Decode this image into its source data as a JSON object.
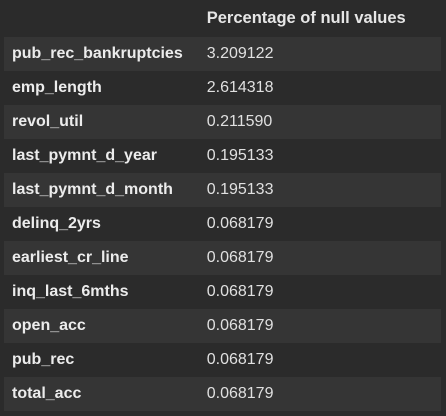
{
  "table": {
    "column_header": "Percentage of null values",
    "rows": [
      {
        "label": "pub_rec_bankruptcies",
        "value": "3.209122"
      },
      {
        "label": "emp_length",
        "value": "2.614318"
      },
      {
        "label": "revol_util",
        "value": "0.211590"
      },
      {
        "label": "last_pymnt_d_year",
        "value": "0.195133"
      },
      {
        "label": "last_pymnt_d_month",
        "value": "0.195133"
      },
      {
        "label": "delinq_2yrs",
        "value": "0.068179"
      },
      {
        "label": "earliest_cr_line",
        "value": "0.068179"
      },
      {
        "label": "inq_last_6mths",
        "value": "0.068179"
      },
      {
        "label": "open_acc",
        "value": "0.068179"
      },
      {
        "label": "pub_rec",
        "value": "0.068179"
      },
      {
        "label": "total_acc",
        "value": "0.068179"
      }
    ]
  },
  "colors": {
    "background": "#2b2b2b",
    "row_stripe": "#353535",
    "text": "#e8e8e8"
  }
}
